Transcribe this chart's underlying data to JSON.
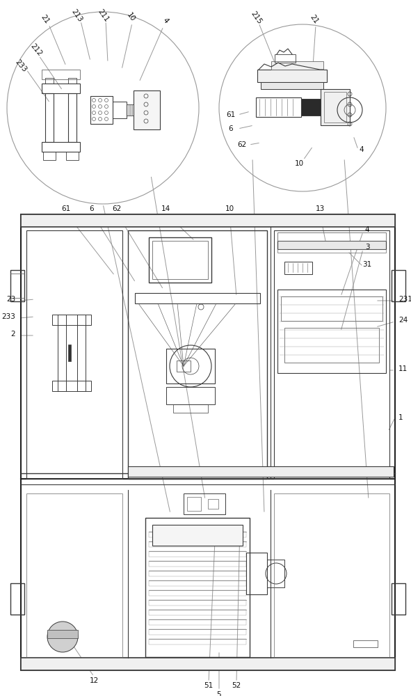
{
  "bg": "#ffffff",
  "lc": "#3a3a3a",
  "lc_light": "#666666",
  "lc_vlight": "#999999",
  "fig_w": 5.91,
  "fig_h": 10.0,
  "dpi": 100,
  "label_fs": 7.5,
  "label_color": "#111111"
}
